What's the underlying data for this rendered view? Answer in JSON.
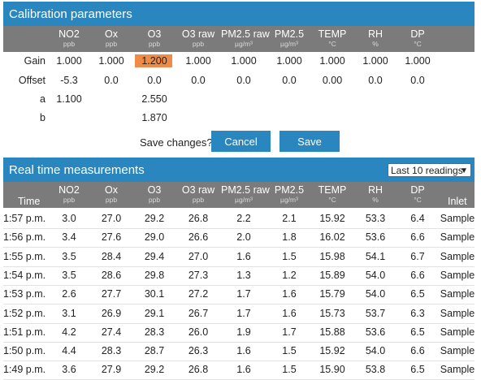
{
  "calibration": {
    "title": "Calibration parameters",
    "columns": [
      {
        "name": "NO2",
        "unit": "ppb"
      },
      {
        "name": "Ox",
        "unit": "ppb"
      },
      {
        "name": "O3",
        "unit": "ppb"
      },
      {
        "name": "O3 raw",
        "unit": "ppb"
      },
      {
        "name": "PM2.5 raw",
        "unit": "µg/m³"
      },
      {
        "name": "PM2.5",
        "unit": "µg/m³"
      },
      {
        "name": "TEMP",
        "unit": "°C"
      },
      {
        "name": "RH",
        "unit": "%"
      },
      {
        "name": "DP",
        "unit": "°C"
      }
    ],
    "rows": [
      {
        "label": "Gain",
        "values": [
          "1.000",
          "1.000",
          "1.200",
          "1.000",
          "1.000",
          "1.000",
          "1.000",
          "1.000",
          "1.000"
        ]
      },
      {
        "label": "Offset",
        "values": [
          "-5.3",
          "0.0",
          "0.0",
          "0.0",
          "0.0",
          "0.0",
          "0.00",
          "0.0",
          "0.0"
        ]
      },
      {
        "label": "a",
        "values": [
          "1.100",
          "",
          "2.550",
          "",
          "",
          "",
          "",
          "",
          ""
        ]
      },
      {
        "label": "b",
        "values": [
          "",
          "",
          "1.870",
          "",
          "",
          "",
          "",
          "",
          ""
        ]
      }
    ],
    "highlight_color": "#ef8a47",
    "save_question": "Save changes?",
    "cancel_label": "Cancel",
    "save_label": "Save"
  },
  "realtime": {
    "title": "Real time measurements",
    "selector_value": "Last 10 readings",
    "time_header": "Time",
    "inlet_header": "Inlet",
    "rows": [
      {
        "time": "1:57 p.m.",
        "values": [
          "3.0",
          "27.0",
          "29.2",
          "26.8",
          "2.2",
          "2.1",
          "15.92",
          "53.3",
          "6.4"
        ],
        "inlet": "Sample"
      },
      {
        "time": "1:56 p.m.",
        "values": [
          "3.4",
          "27.6",
          "29.0",
          "26.6",
          "2.0",
          "1.8",
          "16.02",
          "53.6",
          "6.6"
        ],
        "inlet": "Sample"
      },
      {
        "time": "1:55 p.m.",
        "values": [
          "3.5",
          "28.4",
          "29.4",
          "27.0",
          "1.6",
          "1.5",
          "15.98",
          "54.1",
          "6.7"
        ],
        "inlet": "Sample"
      },
      {
        "time": "1:54 p.m.",
        "values": [
          "3.5",
          "28.6",
          "29.8",
          "27.3",
          "1.3",
          "1.2",
          "15.89",
          "54.0",
          "6.6"
        ],
        "inlet": "Sample"
      },
      {
        "time": "1:53 p.m.",
        "values": [
          "2.6",
          "27.7",
          "30.1",
          "27.2",
          "1.7",
          "1.6",
          "15.79",
          "54.0",
          "6.5"
        ],
        "inlet": "Sample"
      },
      {
        "time": "1:52 p.m.",
        "values": [
          "3.1",
          "26.9",
          "29.1",
          "26.7",
          "1.7",
          "1.6",
          "15.73",
          "53.7",
          "6.3"
        ],
        "inlet": "Sample"
      },
      {
        "time": "1:51 p.m.",
        "values": [
          "4.2",
          "27.4",
          "28.3",
          "26.0",
          "1.9",
          "1.7",
          "15.88",
          "53.6",
          "6.5"
        ],
        "inlet": "Sample"
      },
      {
        "time": "1:50 p.m.",
        "values": [
          "4.4",
          "28.3",
          "28.7",
          "26.3",
          "1.6",
          "1.5",
          "15.92",
          "54.0",
          "6.6"
        ],
        "inlet": "Sample"
      },
      {
        "time": "1:49 p.m.",
        "values": [
          "3.6",
          "27.9",
          "29.2",
          "26.8",
          "1.6",
          "1.5",
          "15.90",
          "53.8",
          "6.5"
        ],
        "inlet": "Sample"
      }
    ]
  },
  "colors": {
    "header_blue": "#2a86bf",
    "table_head_gray": "#7b7b7b",
    "button_blue": "#2a86bf"
  }
}
